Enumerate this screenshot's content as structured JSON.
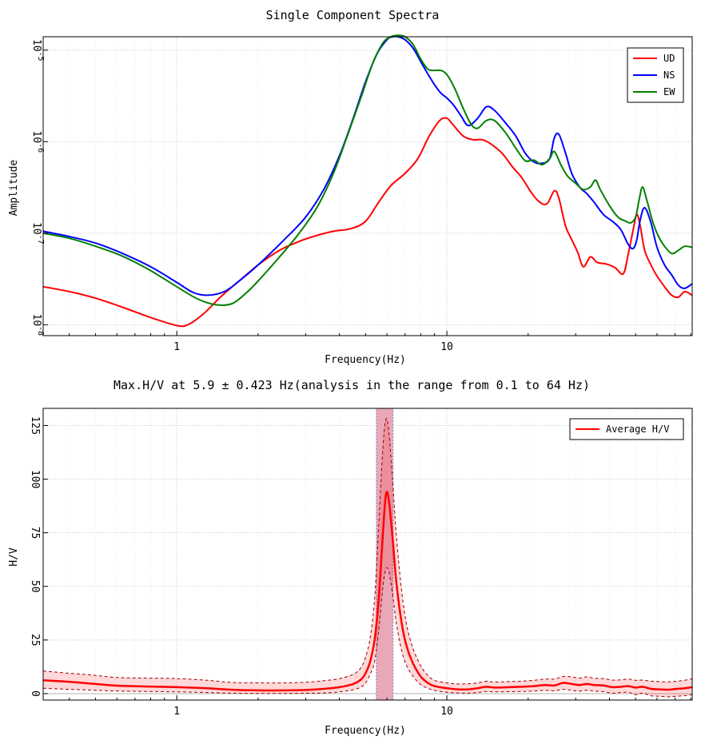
{
  "chart_data": [
    {
      "type": "line",
      "title": "Single Component Spectra",
      "xlabel": "Frequency(Hz)",
      "ylabel": "Amplitude",
      "x_scale": "log",
      "y_scale": "log",
      "xlim": [
        0.32,
        81
      ],
      "ylim": [
        7.6e-09,
        1.4e-05
      ],
      "x_ticks": [
        {
          "value": 1,
          "label": "1"
        },
        {
          "value": 10,
          "label": "10"
        }
      ],
      "y_ticks": [
        {
          "value": 1e-08,
          "base": "10",
          "exp": "-8"
        },
        {
          "value": 1e-07,
          "base": "10",
          "exp": "-7"
        },
        {
          "value": 1e-06,
          "base": "10",
          "exp": "-6"
        },
        {
          "value": 1e-05,
          "base": "10",
          "exp": "-5"
        }
      ],
      "grid": true,
      "legend_position": "top-right",
      "series": [
        {
          "name": "UD",
          "color": "#ff0000",
          "x": [
            0.32,
            0.4,
            0.5,
            0.63,
            0.8,
            1.0,
            1.1,
            1.25,
            1.45,
            1.7,
            2.0,
            2.4,
            2.8,
            3.2,
            3.8,
            4.4,
            5.0,
            5.6,
            6.2,
            7.0,
            7.8,
            8.6,
            9.4,
            10.0,
            10.6,
            11.5,
            12.5,
            13.5,
            14.5,
            16.0,
            17.5,
            19.0,
            20.5,
            22.0,
            23.5,
            25.0,
            26.0,
            27.5,
            29.0,
            30.5,
            32.0,
            34.0,
            36.0,
            39.0,
            42.0,
            45.0,
            47.0,
            49.0,
            50.5,
            52.0,
            54.0,
            57.0,
            60.0,
            64.0,
            68.0,
            72.0,
            76.0,
            81.0
          ],
          "y": [
            2.6e-08,
            2.3e-08,
            1.95e-08,
            1.55e-08,
            1.2e-08,
            9.8e-09,
            1e-08,
            1.3e-08,
            2e-08,
            3e-08,
            4.5e-08,
            6.5e-08,
            8e-08,
            9.2e-08,
            1.05e-07,
            1.12e-07,
            1.35e-07,
            2.2e-07,
            3.3e-07,
            4.5e-07,
            6.5e-07,
            1.15e-06,
            1.7e-06,
            1.8e-06,
            1.5e-06,
            1.15e-06,
            1.05e-06,
            1.05e-06,
            9.5e-07,
            7.5e-07,
            5.3e-07,
            4e-07,
            2.8e-07,
            2.2e-07,
            2.1e-07,
            2.9e-07,
            2.4e-07,
            1.2e-07,
            8.5e-08,
            6.2e-08,
            4.3e-08,
            5.5e-08,
            4.8e-08,
            4.6e-08,
            4.2e-08,
            3.6e-08,
            6e-08,
            1.1e-07,
            1.6e-07,
            1.2e-07,
            6.5e-08,
            4.5e-08,
            3.4e-08,
            2.6e-08,
            2.1e-08,
            2e-08,
            2.3e-08,
            2.1e-08
          ]
        },
        {
          "name": "NS",
          "color": "#0000ff",
          "x": [
            0.32,
            0.4,
            0.5,
            0.63,
            0.8,
            1.0,
            1.15,
            1.3,
            1.5,
            1.7,
            2.0,
            2.5,
            3.0,
            3.5,
            4.0,
            4.5,
            5.0,
            5.5,
            6.0,
            6.3,
            6.6,
            7.0,
            7.5,
            8.0,
            8.5,
            9.0,
            9.5,
            10.0,
            10.6,
            11.3,
            12.0,
            13.0,
            14.0,
            15.0,
            16.5,
            18.0,
            19.5,
            21.0,
            22.5,
            24.0,
            25.0,
            26.0,
            27.5,
            29.0,
            31.0,
            33.0,
            35.0,
            38.0,
            41.0,
            44.0,
            47.0,
            49.0,
            50.5,
            52.0,
            54.0,
            57.0,
            60.0,
            64.0,
            68.0,
            72.0,
            76.0,
            81.0
          ],
          "y": [
            1.05e-07,
            9.2e-08,
            7.8e-08,
            6e-08,
            4.3e-08,
            2.9e-08,
            2.25e-08,
            2.1e-08,
            2.3e-08,
            3e-08,
            4.5e-08,
            8.5e-08,
            1.5e-07,
            3e-07,
            7e-07,
            1.8e-06,
            4.5e-06,
            9e-06,
            1.3e-05,
            1.4e-05,
            1.4e-05,
            1.3e-05,
            1.05e-05,
            7.5e-06,
            5.5e-06,
            4.2e-06,
            3.4e-06,
            3e-06,
            2.5e-06,
            1.9e-06,
            1.5e-06,
            1.8e-06,
            2.4e-06,
            2.2e-06,
            1.6e-06,
            1.15e-06,
            7.5e-07,
            6e-07,
            5.8e-07,
            6.5e-07,
            1.1e-06,
            1.2e-06,
            7.5e-07,
            4.5e-07,
            3.2e-07,
            2.7e-07,
            2.2e-07,
            1.6e-07,
            1.35e-07,
            1.1e-07,
            7.5e-08,
            6.8e-08,
            8.5e-08,
            1.4e-07,
            1.9e-07,
            1.3e-07,
            7e-08,
            4.5e-08,
            3.5e-08,
            2.7e-08,
            2.5e-08,
            2.8e-08
          ]
        },
        {
          "name": "EW",
          "color": "#007f00",
          "x": [
            0.32,
            0.4,
            0.5,
            0.63,
            0.8,
            1.0,
            1.2,
            1.4,
            1.6,
            1.8,
            2.0,
            2.4,
            2.8,
            3.3,
            3.8,
            4.3,
            4.8,
            5.3,
            5.8,
            6.2,
            6.6,
            7.0,
            7.5,
            8.0,
            8.5,
            9.0,
            9.5,
            10.0,
            10.7,
            11.5,
            12.3,
            13.0,
            14.0,
            15.0,
            16.5,
            18.0,
            19.5,
            21.0,
            22.5,
            24.0,
            25.0,
            26.5,
            28.0,
            30.0,
            32.0,
            34.0,
            35.5,
            37.0,
            40.0,
            43.0,
            46.0,
            48.0,
            50.0,
            51.5,
            53.0,
            55.0,
            58.0,
            61.0,
            64.0,
            68.0,
            72.0,
            76.0,
            81.0
          ],
          "y": [
            1e-07,
            8.8e-08,
            7.2e-08,
            5.6e-08,
            3.9e-08,
            2.6e-08,
            1.9e-08,
            1.65e-08,
            1.7e-08,
            2.2e-08,
            3e-08,
            5.5e-08,
            9.5e-08,
            1.9e-07,
            4.5e-07,
            1.2e-06,
            3e-06,
            7e-06,
            1.2e-05,
            1.4e-05,
            1.45e-05,
            1.4e-05,
            1.15e-05,
            8e-06,
            6.2e-06,
            6e-06,
            6e-06,
            5.4e-06,
            3.8e-06,
            2.3e-06,
            1.55e-06,
            1.4e-06,
            1.7e-06,
            1.7e-06,
            1.25e-06,
            8.5e-07,
            6.2e-07,
            6.3e-07,
            5.6e-07,
            6.5e-07,
            7.8e-07,
            5.5e-07,
            4.2e-07,
            3.5e-07,
            3e-07,
            3.2e-07,
            3.8e-07,
            3e-07,
            2e-07,
            1.5e-07,
            1.35e-07,
            1.3e-07,
            1.5e-07,
            2.3e-07,
            3.2e-07,
            2.3e-07,
            1.3e-07,
            9e-08,
            7.2e-08,
            6e-08,
            6.5e-08,
            7.2e-08,
            7e-08
          ]
        }
      ]
    },
    {
      "type": "line",
      "title": "Max.H/V at 5.9 ± 0.423 Hz(analysis in the range from 0.1 to 64 Hz)",
      "xlabel": "Frequency(Hz)",
      "ylabel": "H/V",
      "x_scale": "log",
      "y_scale": "linear",
      "xlim": [
        0.32,
        81
      ],
      "ylim": [
        -3,
        133
      ],
      "x_ticks": [
        {
          "value": 1,
          "label": "1"
        },
        {
          "value": 10,
          "label": "10"
        }
      ],
      "y_ticks": [
        {
          "value": 0,
          "label": "0"
        },
        {
          "value": 25,
          "label": "25"
        },
        {
          "value": 50,
          "label": "50"
        },
        {
          "value": 75,
          "label": "75"
        },
        {
          "value": 100,
          "label": "100"
        },
        {
          "value": 125,
          "label": "125"
        }
      ],
      "grid": true,
      "legend_position": "top-right",
      "peak_band": {
        "min": 5.48,
        "max": 6.32,
        "color": "#e8a8b8"
      },
      "legend": [
        {
          "name": "Average H/V",
          "color": "#ff0000"
        }
      ],
      "x": [
        0.32,
        0.4,
        0.5,
        0.6,
        0.8,
        1.0,
        1.3,
        1.6,
        2.0,
        2.5,
        3.0,
        3.5,
        4.0,
        4.5,
        4.8,
        5.0,
        5.2,
        5.4,
        5.6,
        5.8,
        5.95,
        6.1,
        6.3,
        6.5,
        6.8,
        7.1,
        7.5,
        8.0,
        8.5,
        9.0,
        10.0,
        11.0,
        12.0,
        13.0,
        14.0,
        15.0,
        17.0,
        19.0,
        21.0,
        23.0,
        25.0,
        27.0,
        29.0,
        31.0,
        33.0,
        35.0,
        38.0,
        41.0,
        44.0,
        47.0,
        50.0,
        53.0,
        57.0,
        61.0,
        66.0,
        71.0,
        76.0,
        81.0
      ],
      "mean": [
        6.2,
        5.5,
        4.5,
        3.7,
        3.3,
        3.0,
        2.5,
        1.8,
        1.5,
        1.5,
        1.7,
        2.2,
        3.0,
        4.5,
        6.5,
        9.5,
        15.0,
        25.0,
        45.0,
        75.0,
        93.0,
        90.0,
        72.0,
        52.0,
        33.0,
        22.0,
        14.0,
        8.0,
        5.0,
        3.5,
        2.5,
        2.0,
        2.0,
        2.5,
        3.2,
        2.8,
        3.0,
        3.2,
        3.5,
        4.0,
        3.8,
        5.0,
        4.5,
        4.0,
        4.5,
        4.0,
        3.8,
        3.0,
        3.2,
        3.5,
        2.8,
        3.2,
        2.2,
        2.0,
        1.8,
        2.2,
        2.5,
        3.0
      ],
      "upper": [
        10.5,
        9.5,
        8.5,
        7.5,
        7.2,
        7.0,
        6.2,
        5.2,
        5.0,
        5.0,
        5.3,
        6.0,
        7.0,
        9.0,
        12.0,
        17.0,
        26.0,
        44.0,
        80.0,
        115.0,
        128.0,
        122.0,
        99.0,
        74.0,
        48.0,
        32.0,
        21.0,
        13.0,
        8.5,
        6.2,
        5.0,
        4.5,
        4.6,
        5.0,
        5.8,
        5.4,
        5.6,
        5.8,
        6.2,
        6.8,
        6.8,
        8.0,
        7.8,
        7.2,
        7.8,
        7.2,
        7.0,
        6.3,
        6.4,
        6.8,
        6.2,
        6.3,
        5.8,
        5.6,
        5.5,
        5.8,
        6.2,
        7.0
      ],
      "lower": [
        2.5,
        2.0,
        1.6,
        1.2,
        1.0,
        0.8,
        0.5,
        0.2,
        0.1,
        0.1,
        0.2,
        0.3,
        0.8,
        1.8,
        3.0,
        5.0,
        9.0,
        15.0,
        30.0,
        50.0,
        58.0,
        57.0,
        46.0,
        33.0,
        20.0,
        13.0,
        8.0,
        4.2,
        2.5,
        1.5,
        0.6,
        0.3,
        0.2,
        0.5,
        1.0,
        0.8,
        0.9,
        1.0,
        1.2,
        1.5,
        1.3,
        2.0,
        1.5,
        1.2,
        1.6,
        1.2,
        0.9,
        0.2,
        0.5,
        0.6,
        -0.5,
        0.2,
        -1.0,
        -1.2,
        -1.5,
        -1.2,
        -1.0,
        -0.5
      ]
    }
  ]
}
